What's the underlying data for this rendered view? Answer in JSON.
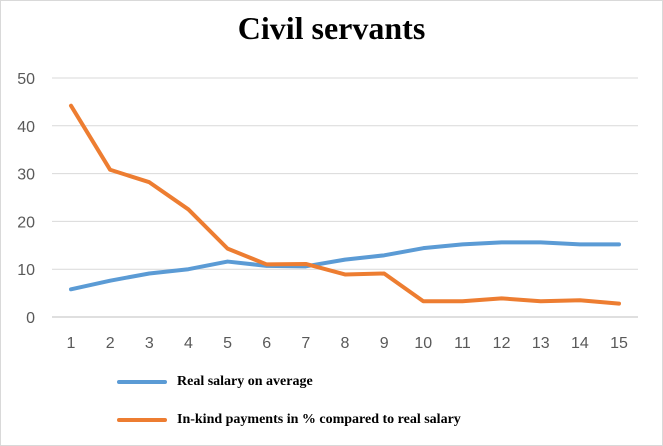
{
  "chart_data": {
    "type": "line",
    "title": "Civil servants",
    "xlabel": "",
    "ylabel": "",
    "x": [
      1,
      2,
      3,
      4,
      5,
      6,
      7,
      8,
      9,
      10,
      11,
      12,
      13,
      14,
      15
    ],
    "x_tick_labels": [
      "1",
      "2",
      "3",
      "4",
      "5",
      "6",
      "7",
      "8",
      "9",
      "10",
      "11",
      "12",
      "13",
      "14",
      "15"
    ],
    "ylim": [
      0,
      50
    ],
    "y_ticks": [
      0,
      10,
      20,
      30,
      40,
      50
    ],
    "y_tick_labels": [
      "0",
      "10",
      "20",
      "30",
      "40",
      "50"
    ],
    "grid": true,
    "legend_position": "bottom",
    "series": [
      {
        "name": "Real salary on average",
        "color": "#5b9bd5",
        "values": [
          5.8,
          7.6,
          9.1,
          10.0,
          11.6,
          10.7,
          10.6,
          12.0,
          12.9,
          14.4,
          15.2,
          15.6,
          15.6,
          15.2,
          15.2
        ]
      },
      {
        "name": "In-kind payments in % compared to real salary",
        "color": "#ed7d31",
        "values": [
          44.2,
          30.8,
          28.2,
          22.5,
          14.3,
          11.0,
          11.1,
          8.9,
          9.1,
          3.3,
          3.3,
          3.9,
          3.3,
          3.5,
          2.8
        ]
      }
    ]
  }
}
